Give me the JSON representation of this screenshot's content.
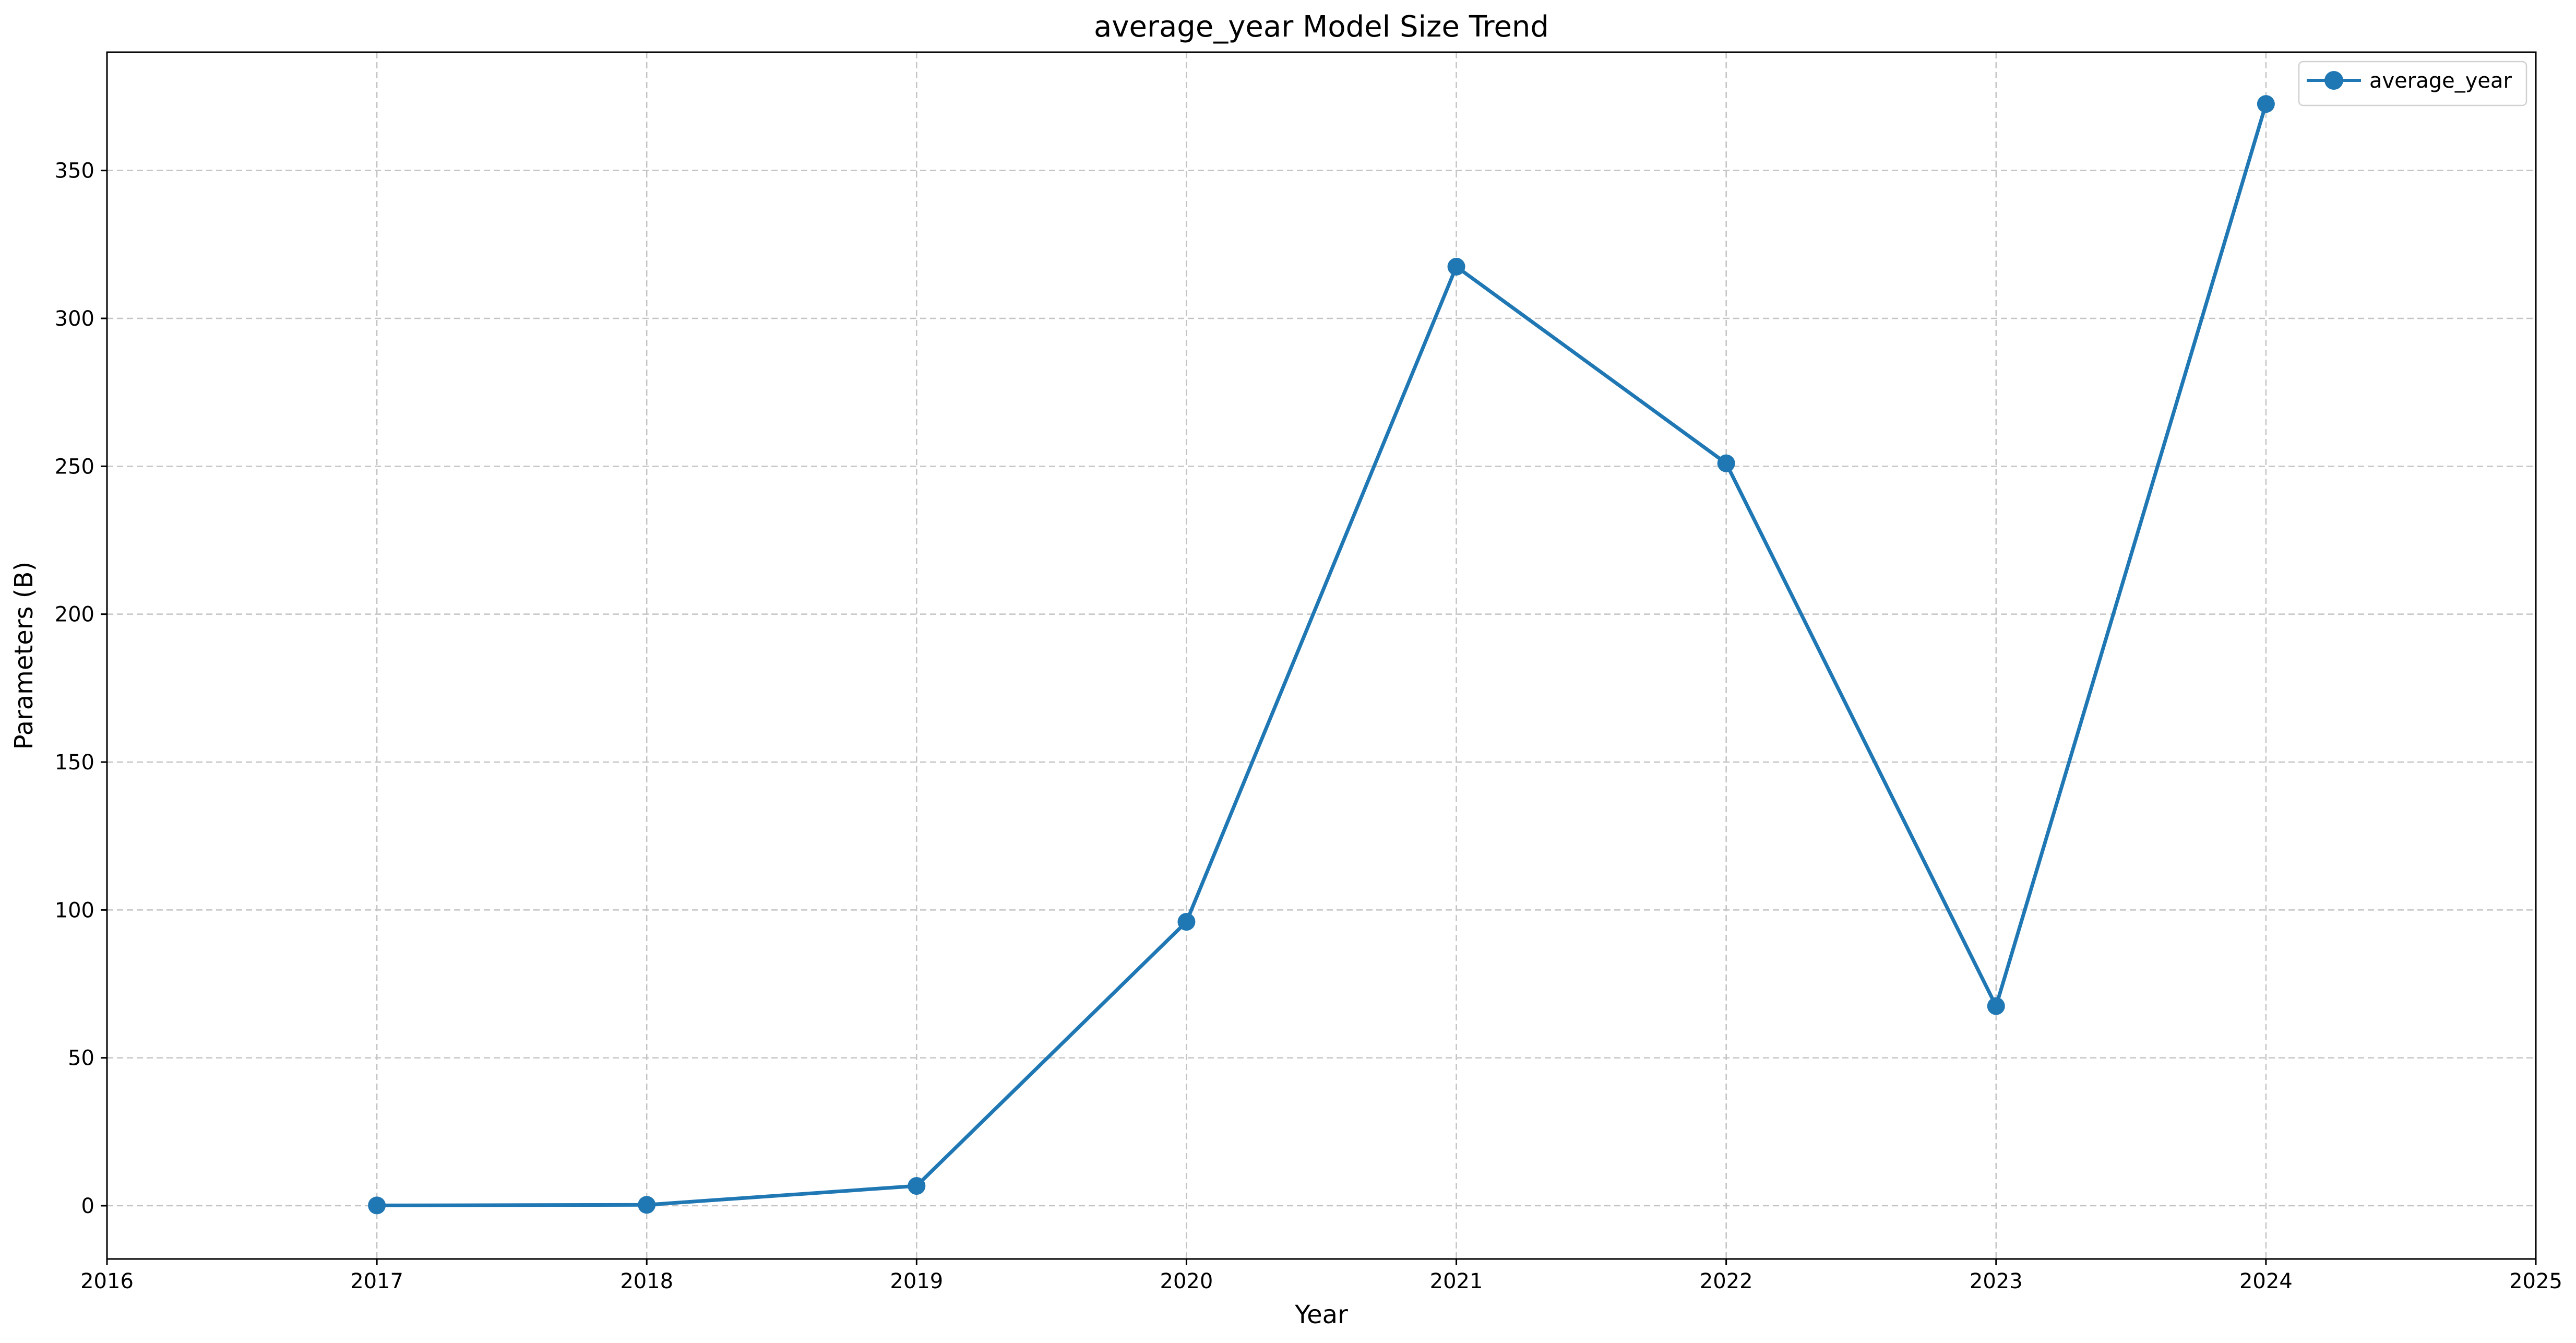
{
  "chart_data": {
    "type": "line",
    "title": "average_year Model Size Trend",
    "xlabel": "Year",
    "ylabel": "Parameters (B)",
    "xlim": [
      2016,
      2025
    ],
    "ylim": [
      -18,
      390
    ],
    "x_ticks": [
      2016,
      2017,
      2018,
      2019,
      2020,
      2021,
      2022,
      2023,
      2024,
      2025
    ],
    "y_ticks": [
      0,
      50,
      100,
      150,
      200,
      250,
      300,
      350
    ],
    "grid": true,
    "legend_position": "top-right",
    "series": [
      {
        "name": "average_year",
        "color": "#1f77b4",
        "marker": "circle",
        "x": [
          2017,
          2018,
          2019,
          2020,
          2021,
          2022,
          2023,
          2024
        ],
        "values": [
          0.1,
          0.3,
          6.7,
          96,
          317.5,
          251,
          67.5,
          372.5
        ]
      }
    ]
  }
}
